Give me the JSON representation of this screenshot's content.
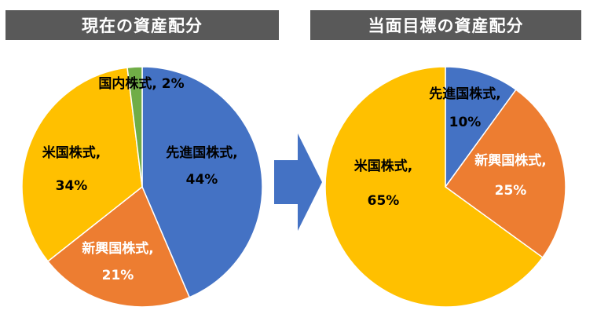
{
  "colors": {
    "blue": "#4472C4",
    "orange": "#ED7D31",
    "gold": "#FFC000",
    "green": "#70AD47",
    "arrow": "#4472C4",
    "title_bg": "#595959"
  },
  "chart_data": [
    {
      "type": "pie",
      "title": "現在の資産配分",
      "slices": [
        {
          "name": "先進国株式",
          "value": 44,
          "color": "#4472C4",
          "label": [
            "先進国株式,",
            "44%"
          ],
          "label_color": "#000000"
        },
        {
          "name": "新興国株式",
          "value": 21,
          "color": "#ED7D31",
          "label": [
            "新興国株式,",
            "21%"
          ],
          "label_color": "#ffffff"
        },
        {
          "name": "米国株式",
          "value": 34,
          "color": "#FFC000",
          "label": [
            "米国株式,",
            "34%"
          ],
          "label_color": "#000000"
        },
        {
          "name": "国内株式",
          "value": 2,
          "color": "#70AD47",
          "label": [
            "国内株式, 2%"
          ],
          "label_color": "#000000"
        }
      ]
    },
    {
      "type": "pie",
      "title": "当面目標の資産配分",
      "slices": [
        {
          "name": "先進国株式",
          "value": 10,
          "color": "#4472C4",
          "label": [
            "先進国株式,",
            "10%"
          ],
          "label_color": "#000000"
        },
        {
          "name": "新興国株式",
          "value": 25,
          "color": "#ED7D31",
          "label": [
            "新興国株式,",
            "25%"
          ],
          "label_color": "#ffffff"
        },
        {
          "name": "米国株式",
          "value": 65,
          "color": "#FFC000",
          "label": [
            "米国株式,",
            "65%"
          ],
          "label_color": "#000000"
        }
      ]
    }
  ]
}
